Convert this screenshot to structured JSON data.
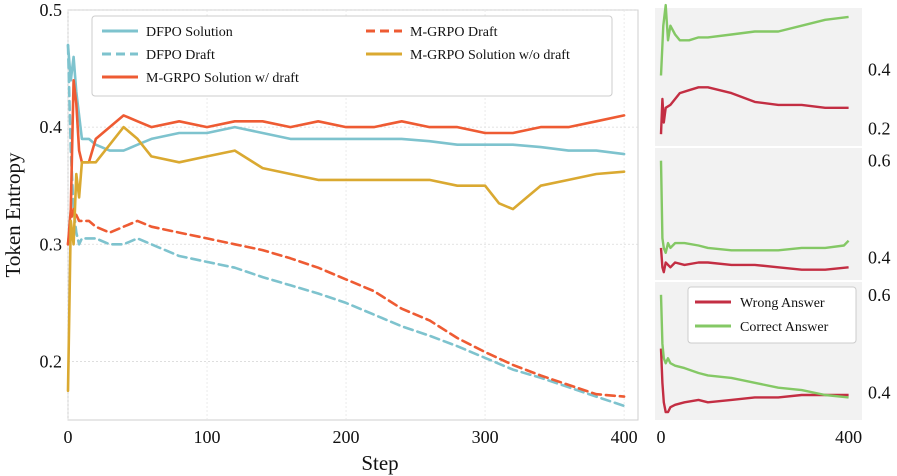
{
  "colors": {
    "dfpo": "#7EC3CE",
    "mgrpo": "#EE5B33",
    "wo_draft": "#DAA931",
    "wrong": "#C32E43",
    "correct": "#84C865",
    "panel_bg": "#f2f2f2"
  },
  "chart_data": [
    {
      "type": "line",
      "xlabel": "Step",
      "ylabel": "Token Entropy",
      "xlim": [
        0,
        410
      ],
      "ylim": [
        0.15,
        0.5
      ],
      "xticks": [
        0,
        100,
        200,
        300,
        400
      ],
      "xtick_labels": [
        "0",
        "100",
        "200",
        "300",
        "400"
      ],
      "yticks": [
        0.2,
        0.3,
        0.4,
        0.5
      ],
      "ytick_labels": [
        "0.2",
        "0.3",
        "0.4",
        "0.5"
      ],
      "grid": true,
      "legend_position": "top",
      "series": [
        {
          "name": "DFPO Solution",
          "style": "solid",
          "color": "#7EC3CE",
          "x": [
            0,
            2,
            4,
            6,
            8,
            10,
            15,
            20,
            30,
            40,
            50,
            60,
            80,
            100,
            120,
            140,
            160,
            180,
            200,
            220,
            240,
            260,
            280,
            300,
            320,
            340,
            360,
            380,
            400
          ],
          "y": [
            0.47,
            0.44,
            0.46,
            0.43,
            0.41,
            0.39,
            0.39,
            0.385,
            0.38,
            0.38,
            0.385,
            0.39,
            0.395,
            0.395,
            0.4,
            0.395,
            0.39,
            0.39,
            0.39,
            0.39,
            0.39,
            0.388,
            0.385,
            0.385,
            0.385,
            0.383,
            0.38,
            0.38,
            0.377
          ]
        },
        {
          "name": "DFPO Draft",
          "style": "dashed",
          "color": "#7EC3CE",
          "x": [
            0,
            2,
            4,
            6,
            8,
            10,
            15,
            20,
            30,
            40,
            50,
            60,
            80,
            100,
            120,
            140,
            160,
            180,
            200,
            220,
            240,
            260,
            280,
            300,
            320,
            340,
            360,
            380,
            400
          ],
          "y": [
            0.47,
            0.38,
            0.33,
            0.31,
            0.3,
            0.305,
            0.305,
            0.305,
            0.3,
            0.3,
            0.305,
            0.3,
            0.29,
            0.285,
            0.28,
            0.272,
            0.265,
            0.258,
            0.25,
            0.24,
            0.23,
            0.222,
            0.213,
            0.203,
            0.193,
            0.186,
            0.178,
            0.17,
            0.162
          ]
        },
        {
          "name": "M-GRPO Solution w/ draft",
          "style": "solid",
          "color": "#EE5B33",
          "x": [
            0,
            2,
            4,
            6,
            8,
            10,
            15,
            20,
            30,
            40,
            50,
            60,
            80,
            100,
            120,
            140,
            160,
            180,
            200,
            220,
            240,
            260,
            280,
            300,
            320,
            340,
            360,
            380,
            400
          ],
          "y": [
            0.3,
            0.33,
            0.44,
            0.42,
            0.38,
            0.37,
            0.37,
            0.39,
            0.4,
            0.41,
            0.405,
            0.4,
            0.405,
            0.4,
            0.405,
            0.405,
            0.4,
            0.405,
            0.4,
            0.4,
            0.405,
            0.4,
            0.4,
            0.395,
            0.395,
            0.4,
            0.4,
            0.405,
            0.41
          ]
        },
        {
          "name": "M-GRPO Draft",
          "style": "dashed",
          "color": "#EE5B33",
          "x": [
            0,
            2,
            4,
            6,
            8,
            10,
            15,
            20,
            30,
            40,
            50,
            60,
            80,
            100,
            120,
            140,
            160,
            180,
            200,
            220,
            240,
            260,
            280,
            300,
            320,
            340,
            360,
            380,
            400
          ],
          "y": [
            0.3,
            0.32,
            0.33,
            0.325,
            0.32,
            0.32,
            0.32,
            0.315,
            0.31,
            0.315,
            0.32,
            0.315,
            0.31,
            0.305,
            0.3,
            0.295,
            0.288,
            0.28,
            0.27,
            0.26,
            0.245,
            0.235,
            0.22,
            0.208,
            0.197,
            0.188,
            0.18,
            0.172,
            0.17
          ]
        },
        {
          "name": "M-GRPO Solution w/o draft",
          "style": "solid",
          "color": "#DAA931",
          "x": [
            0,
            2,
            4,
            6,
            8,
            10,
            15,
            20,
            30,
            40,
            50,
            60,
            80,
            100,
            120,
            140,
            160,
            180,
            200,
            220,
            240,
            260,
            280,
            300,
            310,
            320,
            330,
            340,
            360,
            380,
            400
          ],
          "y": [
            0.175,
            0.32,
            0.3,
            0.36,
            0.34,
            0.37,
            0.37,
            0.37,
            0.385,
            0.4,
            0.39,
            0.375,
            0.37,
            0.375,
            0.38,
            0.365,
            0.36,
            0.355,
            0.355,
            0.355,
            0.355,
            0.355,
            0.35,
            0.35,
            0.335,
            0.33,
            0.34,
            0.35,
            0.355,
            0.36,
            0.362
          ]
        }
      ]
    },
    {
      "type": "line",
      "xlim": [
        0,
        420
      ],
      "xticks": [
        0,
        400
      ],
      "ylim": [
        0.15,
        0.6
      ],
      "yticks": [
        0.2,
        0.4
      ],
      "ytick_labels": [
        "0.2",
        "0.4"
      ],
      "series": [
        {
          "name": "Correct Answer",
          "color": "#84C865",
          "x": [
            0,
            5,
            10,
            15,
            20,
            30,
            40,
            60,
            80,
            100,
            150,
            200,
            250,
            300,
            350,
            400
          ],
          "y": [
            0.38,
            0.55,
            0.62,
            0.5,
            0.55,
            0.52,
            0.5,
            0.5,
            0.51,
            0.51,
            0.52,
            0.53,
            0.53,
            0.55,
            0.57,
            0.58
          ]
        },
        {
          "name": "Wrong Answer",
          "color": "#C32E43",
          "x": [
            0,
            3,
            6,
            10,
            20,
            30,
            40,
            60,
            80,
            100,
            150,
            200,
            250,
            300,
            350,
            400
          ],
          "y": [
            0.18,
            0.3,
            0.22,
            0.27,
            0.28,
            0.3,
            0.32,
            0.33,
            0.34,
            0.34,
            0.32,
            0.29,
            0.28,
            0.28,
            0.27,
            0.27
          ]
        }
      ]
    },
    {
      "type": "line",
      "xlim": [
        0,
        420
      ],
      "xticks": [
        0,
        400
      ],
      "ylim": [
        0.36,
        0.62
      ],
      "yticks": [
        0.4,
        0.6
      ],
      "ytick_labels": [
        "0.4",
        "0.6"
      ],
      "series": [
        {
          "name": "Correct Answer",
          "color": "#84C865",
          "x": [
            0,
            3,
            6,
            10,
            15,
            20,
            30,
            50,
            80,
            100,
            150,
            200,
            250,
            300,
            350,
            390,
            400
          ],
          "y": [
            0.6,
            0.44,
            0.42,
            0.41,
            0.43,
            0.42,
            0.43,
            0.43,
            0.425,
            0.42,
            0.415,
            0.415,
            0.415,
            0.42,
            0.42,
            0.425,
            0.435
          ]
        },
        {
          "name": "Wrong Answer",
          "color": "#C32E43",
          "x": [
            0,
            3,
            6,
            10,
            20,
            30,
            50,
            80,
            100,
            150,
            200,
            250,
            300,
            350,
            400
          ],
          "y": [
            0.42,
            0.38,
            0.37,
            0.39,
            0.38,
            0.39,
            0.385,
            0.39,
            0.39,
            0.385,
            0.385,
            0.38,
            0.375,
            0.375,
            0.38
          ]
        }
      ]
    },
    {
      "type": "line",
      "xlim": [
        0,
        420
      ],
      "xticks": [
        0,
        400
      ],
      "xtick_labels": [
        "0",
        "400"
      ],
      "ylim": [
        0.35,
        0.62
      ],
      "yticks": [
        0.4,
        0.6
      ],
      "ytick_labels": [
        "0.4",
        "0.6"
      ],
      "legend_position": "top",
      "series": [
        {
          "name": "Wrong Answer",
          "color": "#C32E43",
          "x": [
            0,
            3,
            6,
            10,
            15,
            20,
            30,
            50,
            80,
            100,
            150,
            200,
            250,
            300,
            350,
            400
          ],
          "y": [
            0.49,
            0.42,
            0.38,
            0.36,
            0.36,
            0.37,
            0.375,
            0.38,
            0.385,
            0.38,
            0.385,
            0.39,
            0.39,
            0.395,
            0.395,
            0.395
          ]
        },
        {
          "name": "Correct Answer",
          "color": "#84C865",
          "x": [
            0,
            3,
            6,
            10,
            15,
            20,
            30,
            50,
            80,
            100,
            150,
            200,
            250,
            300,
            350,
            400
          ],
          "y": [
            0.6,
            0.5,
            0.47,
            0.46,
            0.47,
            0.46,
            0.455,
            0.45,
            0.44,
            0.435,
            0.43,
            0.42,
            0.41,
            0.405,
            0.395,
            0.39
          ]
        }
      ]
    }
  ]
}
